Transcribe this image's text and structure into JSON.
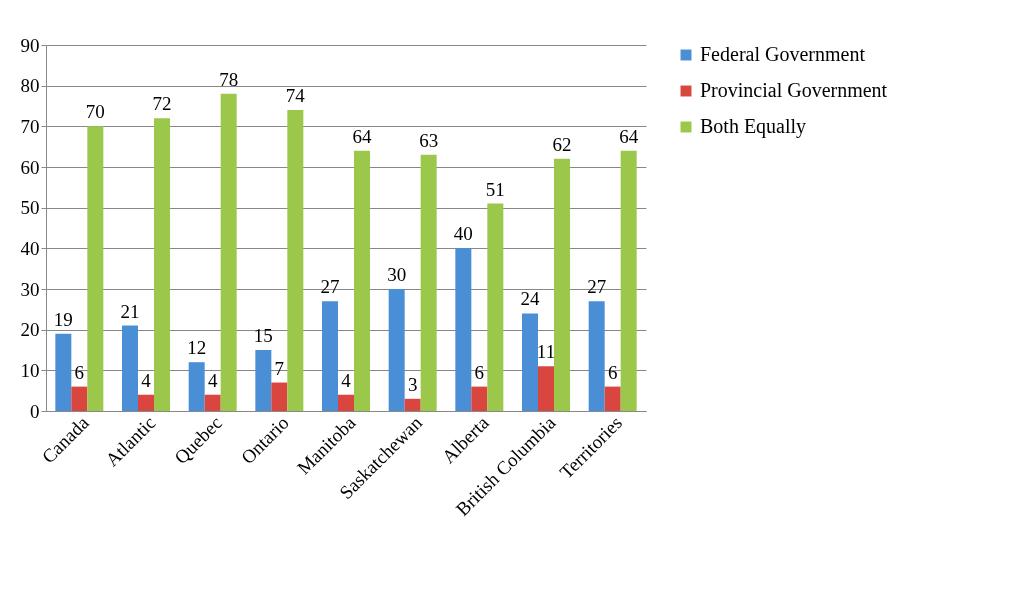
{
  "chart_data": {
    "type": "bar",
    "categories": [
      "Canada",
      "Atlantic",
      "Quebec",
      "Ontario",
      "Manitoba",
      "Saskatchewan",
      "Alberta",
      "British Columbia",
      "Territories"
    ],
    "series": [
      {
        "name": "Federal Government",
        "color": "#4a8fd6",
        "values": [
          19,
          21,
          12,
          15,
          27,
          30,
          40,
          24,
          27
        ]
      },
      {
        "name": "Provincial Government",
        "color": "#d9463f",
        "values": [
          6,
          4,
          4,
          7,
          4,
          3,
          6,
          11,
          6
        ]
      },
      {
        "name": "Both Equally",
        "color": "#9bc74a",
        "values": [
          70,
          72,
          78,
          74,
          64,
          63,
          51,
          62,
          64
        ]
      }
    ],
    "ylim": [
      0,
      90
    ],
    "yticks": [
      0,
      10,
      20,
      30,
      40,
      50,
      60,
      70,
      80,
      90
    ],
    "grid": "y",
    "legend": "right",
    "data_labels": true
  }
}
